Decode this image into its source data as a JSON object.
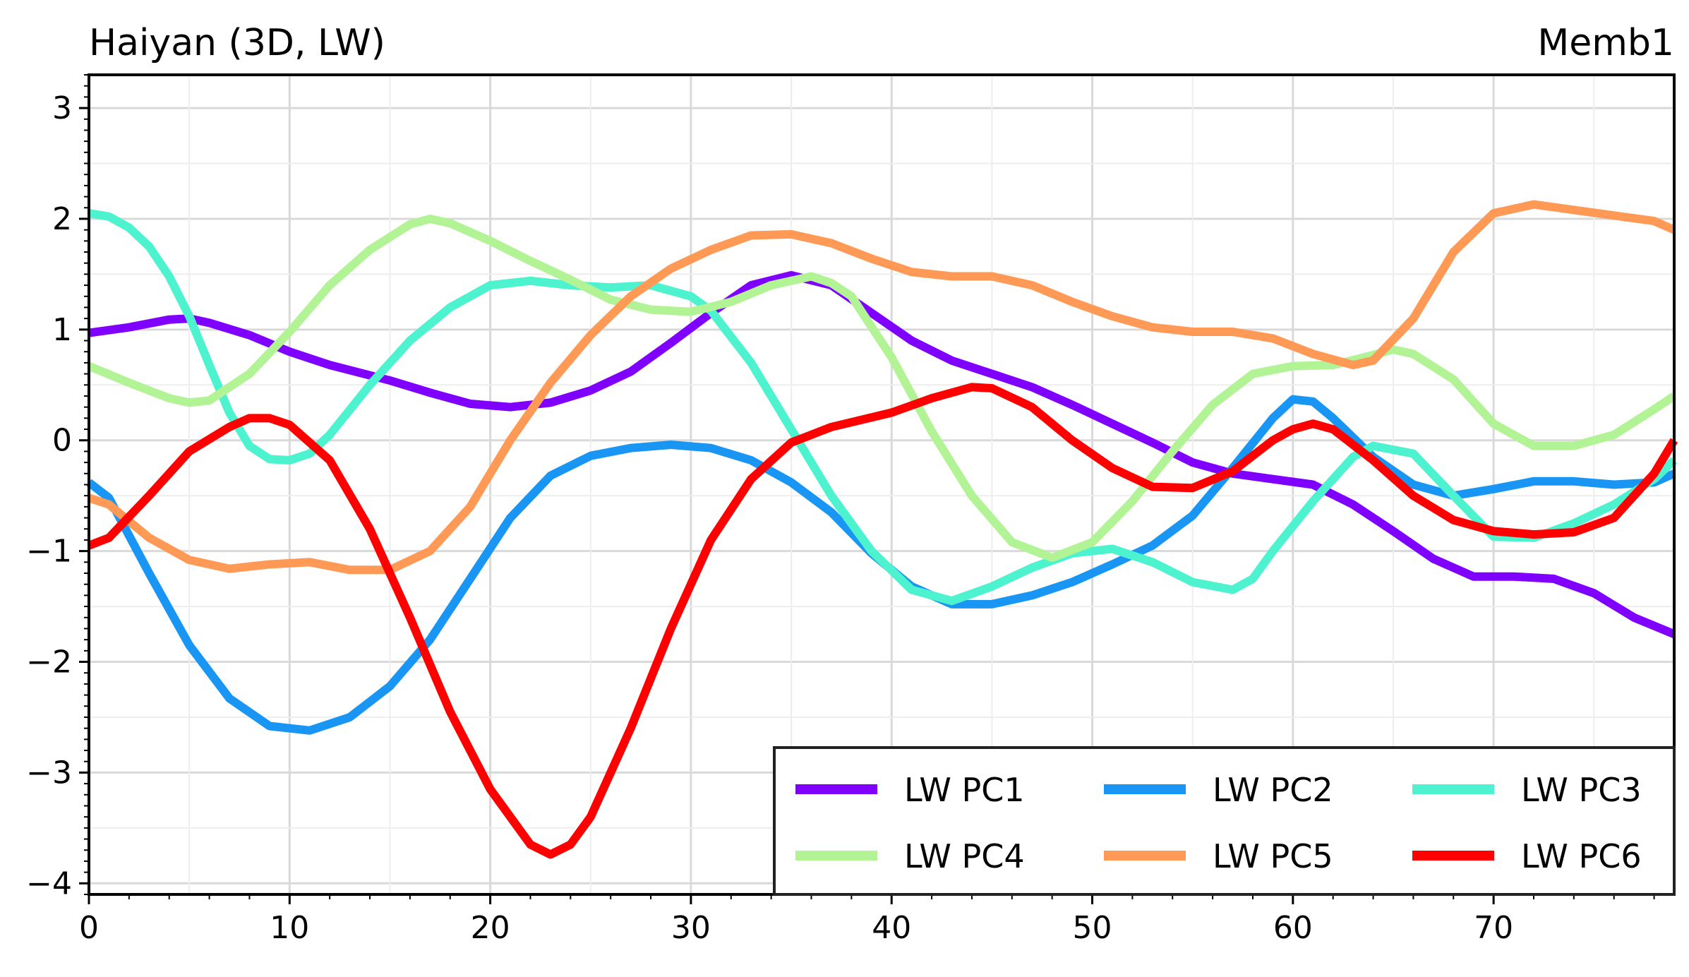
{
  "chart_data": {
    "type": "line",
    "title_left": "Haiyan (3D, LW)",
    "title_right": "Memb1",
    "xlabel": "",
    "ylabel": "",
    "xlim": [
      0,
      79
    ],
    "ylim": [
      -4.1,
      3.3
    ],
    "xticks": [
      0,
      10,
      20,
      30,
      40,
      50,
      60,
      70
    ],
    "xtick_labels": [
      "0",
      "10",
      "20",
      "30",
      "40",
      "50",
      "60",
      "70"
    ],
    "yticks": [
      -4,
      -3,
      -2,
      -1,
      0,
      1,
      2,
      3
    ],
    "ytick_labels": [
      "−4",
      "−3",
      "−2",
      "−1",
      "0",
      "1",
      "2",
      "3"
    ],
    "grid": true,
    "legend_position": "lower-right",
    "legend_columns": 3,
    "series": [
      {
        "name": "LW PC1",
        "color": "#8000ff",
        "points": [
          [
            0,
            0.97
          ],
          [
            2,
            1.02
          ],
          [
            4,
            1.09
          ],
          [
            5,
            1.1
          ],
          [
            6,
            1.06
          ],
          [
            8,
            0.95
          ],
          [
            10,
            0.8
          ],
          [
            12,
            0.68
          ],
          [
            15,
            0.54
          ],
          [
            17,
            0.43
          ],
          [
            19,
            0.33
          ],
          [
            21,
            0.3
          ],
          [
            23,
            0.34
          ],
          [
            25,
            0.45
          ],
          [
            27,
            0.62
          ],
          [
            29,
            0.88
          ],
          [
            31,
            1.15
          ],
          [
            33,
            1.4
          ],
          [
            35,
            1.49
          ],
          [
            37,
            1.4
          ],
          [
            39,
            1.15
          ],
          [
            41,
            0.9
          ],
          [
            43,
            0.72
          ],
          [
            45,
            0.6
          ],
          [
            47,
            0.48
          ],
          [
            49,
            0.32
          ],
          [
            51,
            0.15
          ],
          [
            53,
            -0.02
          ],
          [
            55,
            -0.2
          ],
          [
            57,
            -0.3
          ],
          [
            59,
            -0.35
          ],
          [
            61,
            -0.4
          ],
          [
            63,
            -0.58
          ],
          [
            65,
            -0.82
          ],
          [
            67,
            -1.07
          ],
          [
            69,
            -1.23
          ],
          [
            71,
            -1.23
          ],
          [
            73,
            -1.25
          ],
          [
            75,
            -1.38
          ],
          [
            77,
            -1.6
          ],
          [
            79,
            -1.75
          ]
        ]
      },
      {
        "name": "LW PC2",
        "color": "#1996f3",
        "points": [
          [
            0,
            -0.38
          ],
          [
            1,
            -0.52
          ],
          [
            3,
            -1.2
          ],
          [
            5,
            -1.85
          ],
          [
            7,
            -2.33
          ],
          [
            9,
            -2.58
          ],
          [
            11,
            -2.62
          ],
          [
            13,
            -2.5
          ],
          [
            15,
            -2.22
          ],
          [
            17,
            -1.8
          ],
          [
            19,
            -1.25
          ],
          [
            21,
            -0.7
          ],
          [
            23,
            -0.32
          ],
          [
            25,
            -0.14
          ],
          [
            27,
            -0.07
          ],
          [
            29,
            -0.04
          ],
          [
            31,
            -0.07
          ],
          [
            33,
            -0.18
          ],
          [
            35,
            -0.38
          ],
          [
            37,
            -0.65
          ],
          [
            39,
            -1.02
          ],
          [
            41,
            -1.32
          ],
          [
            43,
            -1.48
          ],
          [
            45,
            -1.48
          ],
          [
            47,
            -1.4
          ],
          [
            49,
            -1.28
          ],
          [
            51,
            -1.12
          ],
          [
            53,
            -0.95
          ],
          [
            55,
            -0.68
          ],
          [
            57,
            -0.25
          ],
          [
            59,
            0.2
          ],
          [
            60,
            0.37
          ],
          [
            61,
            0.35
          ],
          [
            62,
            0.2
          ],
          [
            64,
            -0.15
          ],
          [
            66,
            -0.4
          ],
          [
            68,
            -0.5
          ],
          [
            70,
            -0.44
          ],
          [
            72,
            -0.37
          ],
          [
            74,
            -0.37
          ],
          [
            76,
            -0.4
          ],
          [
            78,
            -0.38
          ],
          [
            79,
            -0.3
          ]
        ]
      },
      {
        "name": "LW PC3",
        "color": "#4df3ce",
        "points": [
          [
            0,
            2.05
          ],
          [
            1,
            2.02
          ],
          [
            2,
            1.92
          ],
          [
            3,
            1.75
          ],
          [
            4,
            1.48
          ],
          [
            5,
            1.12
          ],
          [
            6,
            0.68
          ],
          [
            7,
            0.25
          ],
          [
            8,
            -0.05
          ],
          [
            9,
            -0.17
          ],
          [
            10,
            -0.18
          ],
          [
            11,
            -0.12
          ],
          [
            12,
            0.05
          ],
          [
            14,
            0.5
          ],
          [
            16,
            0.9
          ],
          [
            18,
            1.2
          ],
          [
            20,
            1.4
          ],
          [
            22,
            1.44
          ],
          [
            24,
            1.4
          ],
          [
            26,
            1.38
          ],
          [
            28,
            1.4
          ],
          [
            30,
            1.3
          ],
          [
            31,
            1.17
          ],
          [
            33,
            0.7
          ],
          [
            35,
            0.1
          ],
          [
            37,
            -0.5
          ],
          [
            39,
            -1.0
          ],
          [
            41,
            -1.35
          ],
          [
            43,
            -1.45
          ],
          [
            45,
            -1.32
          ],
          [
            47,
            -1.15
          ],
          [
            49,
            -1.02
          ],
          [
            51,
            -0.98
          ],
          [
            53,
            -1.1
          ],
          [
            55,
            -1.28
          ],
          [
            57,
            -1.35
          ],
          [
            58,
            -1.25
          ],
          [
            59,
            -1.0
          ],
          [
            61,
            -0.55
          ],
          [
            63,
            -0.15
          ],
          [
            64,
            -0.05
          ],
          [
            66,
            -0.12
          ],
          [
            68,
            -0.5
          ],
          [
            70,
            -0.87
          ],
          [
            72,
            -0.88
          ],
          [
            74,
            -0.75
          ],
          [
            76,
            -0.58
          ],
          [
            78,
            -0.35
          ],
          [
            79,
            -0.18
          ]
        ]
      },
      {
        "name": "LW PC4",
        "color": "#b2f396",
        "points": [
          [
            0,
            0.67
          ],
          [
            2,
            0.52
          ],
          [
            4,
            0.38
          ],
          [
            5,
            0.34
          ],
          [
            6,
            0.36
          ],
          [
            8,
            0.6
          ],
          [
            10,
            0.98
          ],
          [
            12,
            1.4
          ],
          [
            14,
            1.72
          ],
          [
            16,
            1.95
          ],
          [
            17,
            2.0
          ],
          [
            18,
            1.96
          ],
          [
            20,
            1.8
          ],
          [
            22,
            1.62
          ],
          [
            24,
            1.45
          ],
          [
            26,
            1.27
          ],
          [
            28,
            1.18
          ],
          [
            30,
            1.16
          ],
          [
            32,
            1.25
          ],
          [
            34,
            1.4
          ],
          [
            36,
            1.48
          ],
          [
            37,
            1.42
          ],
          [
            38,
            1.3
          ],
          [
            40,
            0.75
          ],
          [
            42,
            0.08
          ],
          [
            44,
            -0.5
          ],
          [
            46,
            -0.92
          ],
          [
            48,
            -1.06
          ],
          [
            50,
            -0.92
          ],
          [
            52,
            -0.55
          ],
          [
            54,
            -0.1
          ],
          [
            56,
            0.32
          ],
          [
            58,
            0.6
          ],
          [
            60,
            0.67
          ],
          [
            62,
            0.68
          ],
          [
            64,
            0.77
          ],
          [
            65,
            0.82
          ],
          [
            66,
            0.78
          ],
          [
            68,
            0.55
          ],
          [
            70,
            0.15
          ],
          [
            72,
            -0.05
          ],
          [
            74,
            -0.05
          ],
          [
            76,
            0.05
          ],
          [
            78,
            0.28
          ],
          [
            79,
            0.4
          ]
        ]
      },
      {
        "name": "LW PC5",
        "color": "#ff9a56",
        "points": [
          [
            0,
            -0.52
          ],
          [
            1,
            -0.58
          ],
          [
            3,
            -0.88
          ],
          [
            5,
            -1.08
          ],
          [
            7,
            -1.16
          ],
          [
            9,
            -1.12
          ],
          [
            11,
            -1.1
          ],
          [
            13,
            -1.17
          ],
          [
            15,
            -1.17
          ],
          [
            17,
            -1.0
          ],
          [
            19,
            -0.6
          ],
          [
            21,
            0.0
          ],
          [
            23,
            0.52
          ],
          [
            25,
            0.95
          ],
          [
            27,
            1.3
          ],
          [
            29,
            1.55
          ],
          [
            31,
            1.72
          ],
          [
            33,
            1.85
          ],
          [
            35,
            1.86
          ],
          [
            37,
            1.78
          ],
          [
            39,
            1.64
          ],
          [
            41,
            1.52
          ],
          [
            43,
            1.48
          ],
          [
            45,
            1.48
          ],
          [
            47,
            1.4
          ],
          [
            49,
            1.25
          ],
          [
            51,
            1.12
          ],
          [
            53,
            1.02
          ],
          [
            55,
            0.98
          ],
          [
            57,
            0.98
          ],
          [
            59,
            0.92
          ],
          [
            61,
            0.78
          ],
          [
            63,
            0.68
          ],
          [
            64,
            0.72
          ],
          [
            66,
            1.1
          ],
          [
            68,
            1.7
          ],
          [
            70,
            2.05
          ],
          [
            72,
            2.13
          ],
          [
            74,
            2.08
          ],
          [
            76,
            2.03
          ],
          [
            78,
            1.98
          ],
          [
            79,
            1.9
          ]
        ]
      },
      {
        "name": "LW PC6",
        "color": "#ff0000",
        "points": [
          [
            0,
            -0.95
          ],
          [
            1,
            -0.88
          ],
          [
            3,
            -0.5
          ],
          [
            5,
            -0.1
          ],
          [
            7,
            0.12
          ],
          [
            8,
            0.2
          ],
          [
            9,
            0.2
          ],
          [
            10,
            0.14
          ],
          [
            12,
            -0.18
          ],
          [
            14,
            -0.8
          ],
          [
            16,
            -1.6
          ],
          [
            18,
            -2.45
          ],
          [
            20,
            -3.15
          ],
          [
            22,
            -3.65
          ],
          [
            23,
            -3.74
          ],
          [
            24,
            -3.65
          ],
          [
            25,
            -3.4
          ],
          [
            27,
            -2.6
          ],
          [
            29,
            -1.7
          ],
          [
            31,
            -0.9
          ],
          [
            33,
            -0.35
          ],
          [
            35,
            -0.02
          ],
          [
            37,
            0.12
          ],
          [
            40,
            0.25
          ],
          [
            42,
            0.38
          ],
          [
            44,
            0.48
          ],
          [
            45,
            0.47
          ],
          [
            47,
            0.3
          ],
          [
            49,
            0.0
          ],
          [
            51,
            -0.25
          ],
          [
            53,
            -0.42
          ],
          [
            55,
            -0.43
          ],
          [
            57,
            -0.28
          ],
          [
            59,
            0.0
          ],
          [
            60,
            0.1
          ],
          [
            61,
            0.15
          ],
          [
            62,
            0.1
          ],
          [
            64,
            -0.18
          ],
          [
            66,
            -0.5
          ],
          [
            68,
            -0.72
          ],
          [
            70,
            -0.82
          ],
          [
            72,
            -0.85
          ],
          [
            74,
            -0.83
          ],
          [
            76,
            -0.7
          ],
          [
            78,
            -0.3
          ],
          [
            79,
            0.0
          ]
        ]
      }
    ]
  }
}
